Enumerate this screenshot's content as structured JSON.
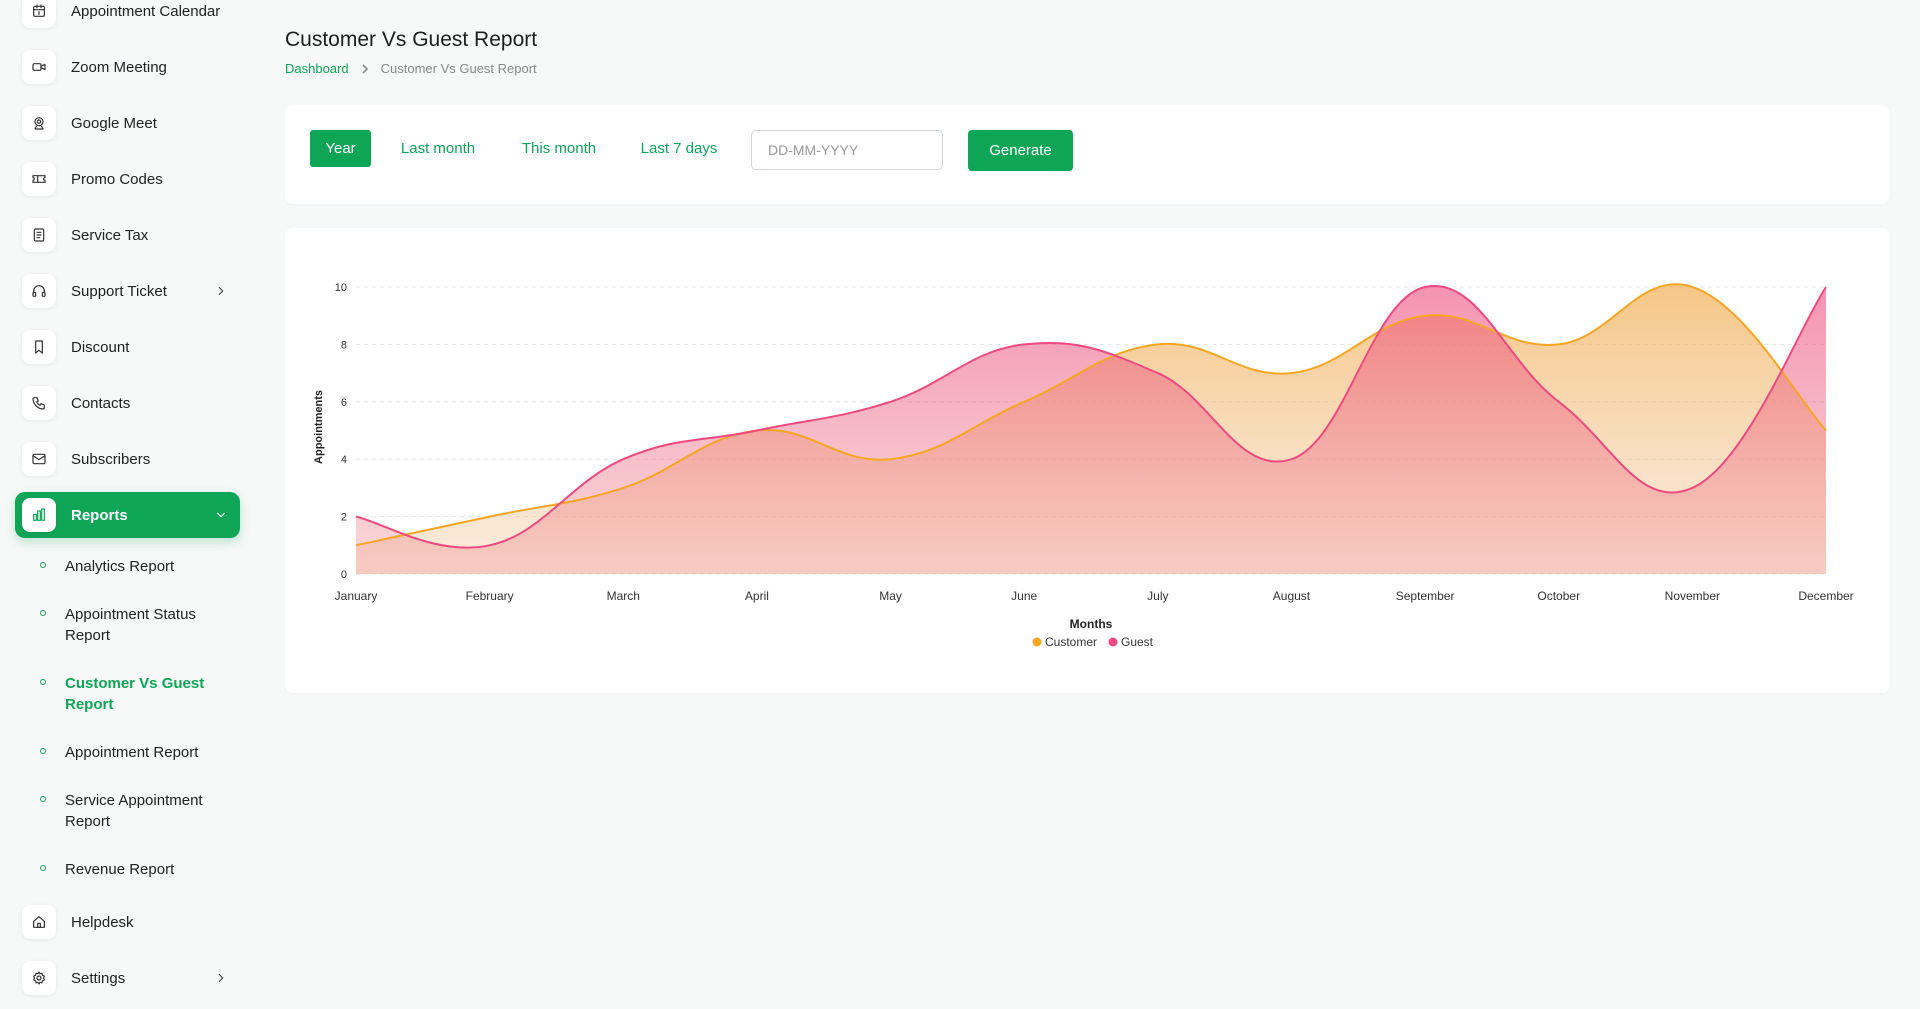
{
  "sidebar": {
    "items": [
      {
        "label": "Appointment Calendar",
        "icon": "calendar-icon"
      },
      {
        "label": "Zoom Meeting",
        "icon": "video-icon"
      },
      {
        "label": "Google Meet",
        "icon": "webcam-icon"
      },
      {
        "label": "Promo Codes",
        "icon": "ticket-icon"
      },
      {
        "label": "Service Tax",
        "icon": "receipt-icon"
      },
      {
        "label": "Support Ticket",
        "icon": "headset-icon"
      },
      {
        "label": "Discount",
        "icon": "bookmark-icon"
      },
      {
        "label": "Contacts",
        "icon": "phone-icon"
      },
      {
        "label": "Subscribers",
        "icon": "mail-icon"
      },
      {
        "label": "Reports",
        "icon": "bar-chart-icon"
      },
      {
        "label": "Helpdesk",
        "icon": "home-icon"
      },
      {
        "label": "Settings",
        "icon": "gear-icon"
      }
    ],
    "report_subitems": [
      {
        "label": "Analytics Report"
      },
      {
        "label": "Appointment Status Report"
      },
      {
        "label": "Customer Vs Guest Report"
      },
      {
        "label": "Appointment Report"
      },
      {
        "label": "Service Appointment Report"
      },
      {
        "label": "Revenue Report"
      }
    ]
  },
  "header": {
    "title": "Customer Vs Guest Report",
    "breadcrumb": {
      "root": "Dashboard",
      "current": "Customer Vs Guest Report"
    }
  },
  "filters": {
    "options": [
      "Year",
      "Last month",
      "This month",
      "Last 7 days"
    ],
    "selected": "Year",
    "date_placeholder": "DD-MM-YYYY",
    "generate_label": "Generate"
  },
  "colors": {
    "accent": "#0fa557",
    "customer": "#f5a623",
    "guest": "#ee4a80"
  },
  "chart_data": {
    "type": "area",
    "categories": [
      "January",
      "February",
      "March",
      "April",
      "May",
      "June",
      "July",
      "August",
      "September",
      "October",
      "November",
      "December"
    ],
    "series": [
      {
        "name": "Customer",
        "values": [
          1,
          2,
          3,
          5,
          4,
          6,
          8,
          7,
          9,
          8,
          10,
          5
        ]
      },
      {
        "name": "Guest",
        "values": [
          2,
          1,
          4,
          5,
          6,
          8,
          7,
          4,
          10,
          6,
          3,
          10
        ]
      }
    ],
    "title": "",
    "xlabel": "Months",
    "ylabel": "Appointments",
    "ylim": [
      0,
      10
    ],
    "yticks": [
      0,
      2,
      4,
      6,
      8,
      10
    ],
    "grid": true,
    "legend": "bottom-center"
  }
}
